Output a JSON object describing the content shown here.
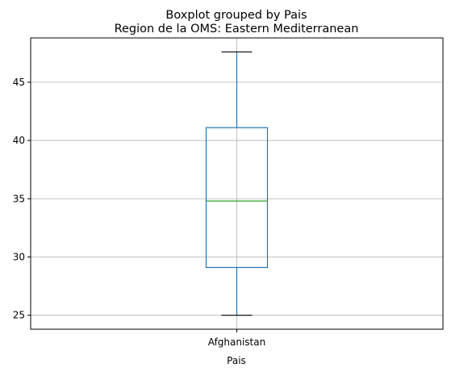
{
  "chart_data": {
    "type": "box",
    "title": "Boxplot grouped by Pais",
    "subtitle": "Region de la OMS: Eastern Mediterranean",
    "xlabel": "Pais",
    "ylabel": "",
    "categories": [
      "Afghanistan"
    ],
    "boxes": [
      {
        "category": "Afghanistan",
        "whisker_low": 25.0,
        "q1": 29.1,
        "median": 34.8,
        "q3": 41.1,
        "whisker_high": 47.6
      }
    ],
    "ylim": [
      23.8,
      48.8
    ],
    "yticks": [
      25,
      30,
      35,
      40,
      45
    ],
    "grid": true,
    "colors": {
      "box": "#1f77b4",
      "median": "#2ca02c",
      "grid": "#b0b0b0"
    }
  }
}
